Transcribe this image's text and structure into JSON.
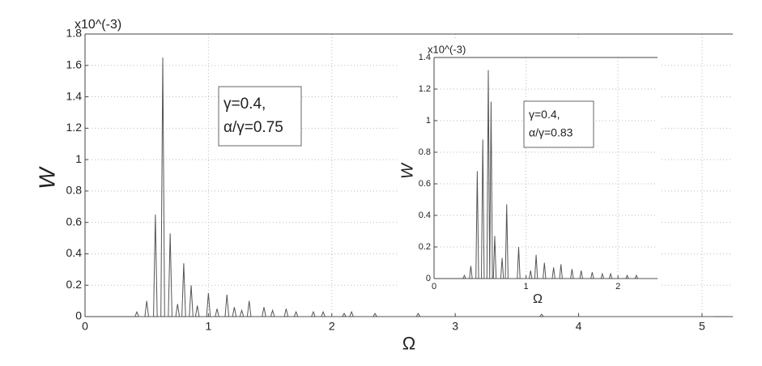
{
  "chart_data": [
    {
      "type": "line",
      "y_label": "W",
      "x_label": "Ω",
      "y_exponent_label": "x10^(-3)",
      "annotation": [
        "γ=0.4,",
        "α/γ=0.75"
      ],
      "xlim": [
        0,
        5.25
      ],
      "xticks": [
        0,
        1,
        2,
        3,
        4,
        5
      ],
      "ylim": [
        0,
        1.8
      ],
      "yticks": [
        0,
        0.2,
        0.4,
        0.6,
        0.8,
        1,
        1.2,
        1.4,
        1.6,
        1.8
      ],
      "grid": true,
      "color": "#555555",
      "x": [
        0.405,
        0.42,
        0.435,
        0.485,
        0.5,
        0.515,
        0.555,
        0.57,
        0.585,
        0.615,
        0.63,
        0.645,
        0.675,
        0.69,
        0.705,
        0.735,
        0.75,
        0.765,
        0.785,
        0.8,
        0.815,
        0.845,
        0.86,
        0.875,
        0.895,
        0.91,
        0.925,
        0.985,
        1.0,
        1.015,
        1.055,
        1.07,
        1.085,
        1.135,
        1.15,
        1.165,
        1.195,
        1.21,
        1.225,
        1.255,
        1.27,
        1.285,
        1.315,
        1.33,
        1.345,
        1.435,
        1.45,
        1.465,
        1.505,
        1.52,
        1.535,
        1.615,
        1.63,
        1.645,
        1.695,
        1.71,
        1.725,
        1.835,
        1.85,
        1.865,
        1.915,
        1.93,
        1.945,
        2.085,
        2.1,
        2.115,
        2.145,
        2.16,
        2.175,
        2.335,
        2.35,
        2.365,
        2.685,
        2.7,
        2.715,
        3.685,
        3.7,
        3.715,
        5.1
      ],
      "values": [
        0,
        0.03,
        0,
        0,
        0.1,
        0,
        0,
        0.65,
        0,
        0,
        1.65,
        0,
        0,
        0.53,
        0,
        0,
        0.08,
        0,
        0,
        0.34,
        0,
        0,
        0.2,
        0,
        0,
        0.07,
        0,
        0,
        0.15,
        0,
        0,
        0.05,
        0,
        0,
        0.14,
        0,
        0,
        0.06,
        0,
        0,
        0.04,
        0,
        0,
        0.1,
        0,
        0,
        0.06,
        0,
        0,
        0.04,
        0,
        0,
        0.05,
        0,
        0,
        0.03,
        0,
        0,
        0.03,
        0,
        0,
        0.03,
        0,
        0,
        0.02,
        0,
        0,
        0.03,
        0,
        0,
        0.02,
        0,
        0,
        0.02,
        0,
        0,
        0.015,
        0,
        0
      ]
    },
    {
      "type": "line",
      "y_label": "W",
      "x_label": "Ω",
      "y_exponent_label": "x10^(-3)",
      "annotation": [
        "γ=0.4,",
        "α/γ=0.83"
      ],
      "xlim": [
        0,
        2.43
      ],
      "xticks": [
        0,
        1,
        2
      ],
      "ylim": [
        0,
        1.4
      ],
      "yticks": [
        0,
        0.2,
        0.4,
        0.6,
        0.8,
        1,
        1.2,
        1.4
      ],
      "grid": true,
      "color": "#555555",
      "x": [
        0.315,
        0.33,
        0.345,
        0.385,
        0.4,
        0.415,
        0.455,
        0.47,
        0.485,
        0.515,
        0.53,
        0.545,
        0.575,
        0.59,
        0.605,
        0.62,
        0.635,
        0.645,
        0.66,
        0.675,
        0.725,
        0.74,
        0.755,
        0.775,
        0.79,
        0.805,
        0.905,
        0.92,
        0.935,
        1.035,
        1.05,
        1.065,
        1.095,
        1.11,
        1.125,
        1.185,
        1.2,
        1.215,
        1.285,
        1.3,
        1.315,
        1.365,
        1.38,
        1.395,
        1.485,
        1.5,
        1.515,
        1.585,
        1.6,
        1.615,
        1.705,
        1.72,
        1.735,
        1.815,
        1.83,
        1.845,
        1.905,
        1.92,
        1.935,
        2.085,
        2.1,
        2.115,
        2.185,
        2.2,
        2.215,
        2.42
      ],
      "values": [
        0,
        0.02,
        0,
        0,
        0.08,
        0,
        0,
        0.68,
        0,
        0,
        0.88,
        0,
        0,
        1.32,
        0,
        1.12,
        0,
        0,
        0.27,
        0,
        0,
        0.13,
        0,
        0,
        0.47,
        0,
        0,
        0.2,
        0,
        0,
        0.05,
        0,
        0,
        0.15,
        0,
        0,
        0.1,
        0,
        0,
        0.07,
        0,
        0,
        0.09,
        0,
        0,
        0.06,
        0,
        0,
        0.05,
        0,
        0,
        0.04,
        0,
        0,
        0.03,
        0,
        0,
        0.03,
        0,
        0,
        0.02,
        0,
        0,
        0.02,
        0,
        0
      ]
    }
  ]
}
